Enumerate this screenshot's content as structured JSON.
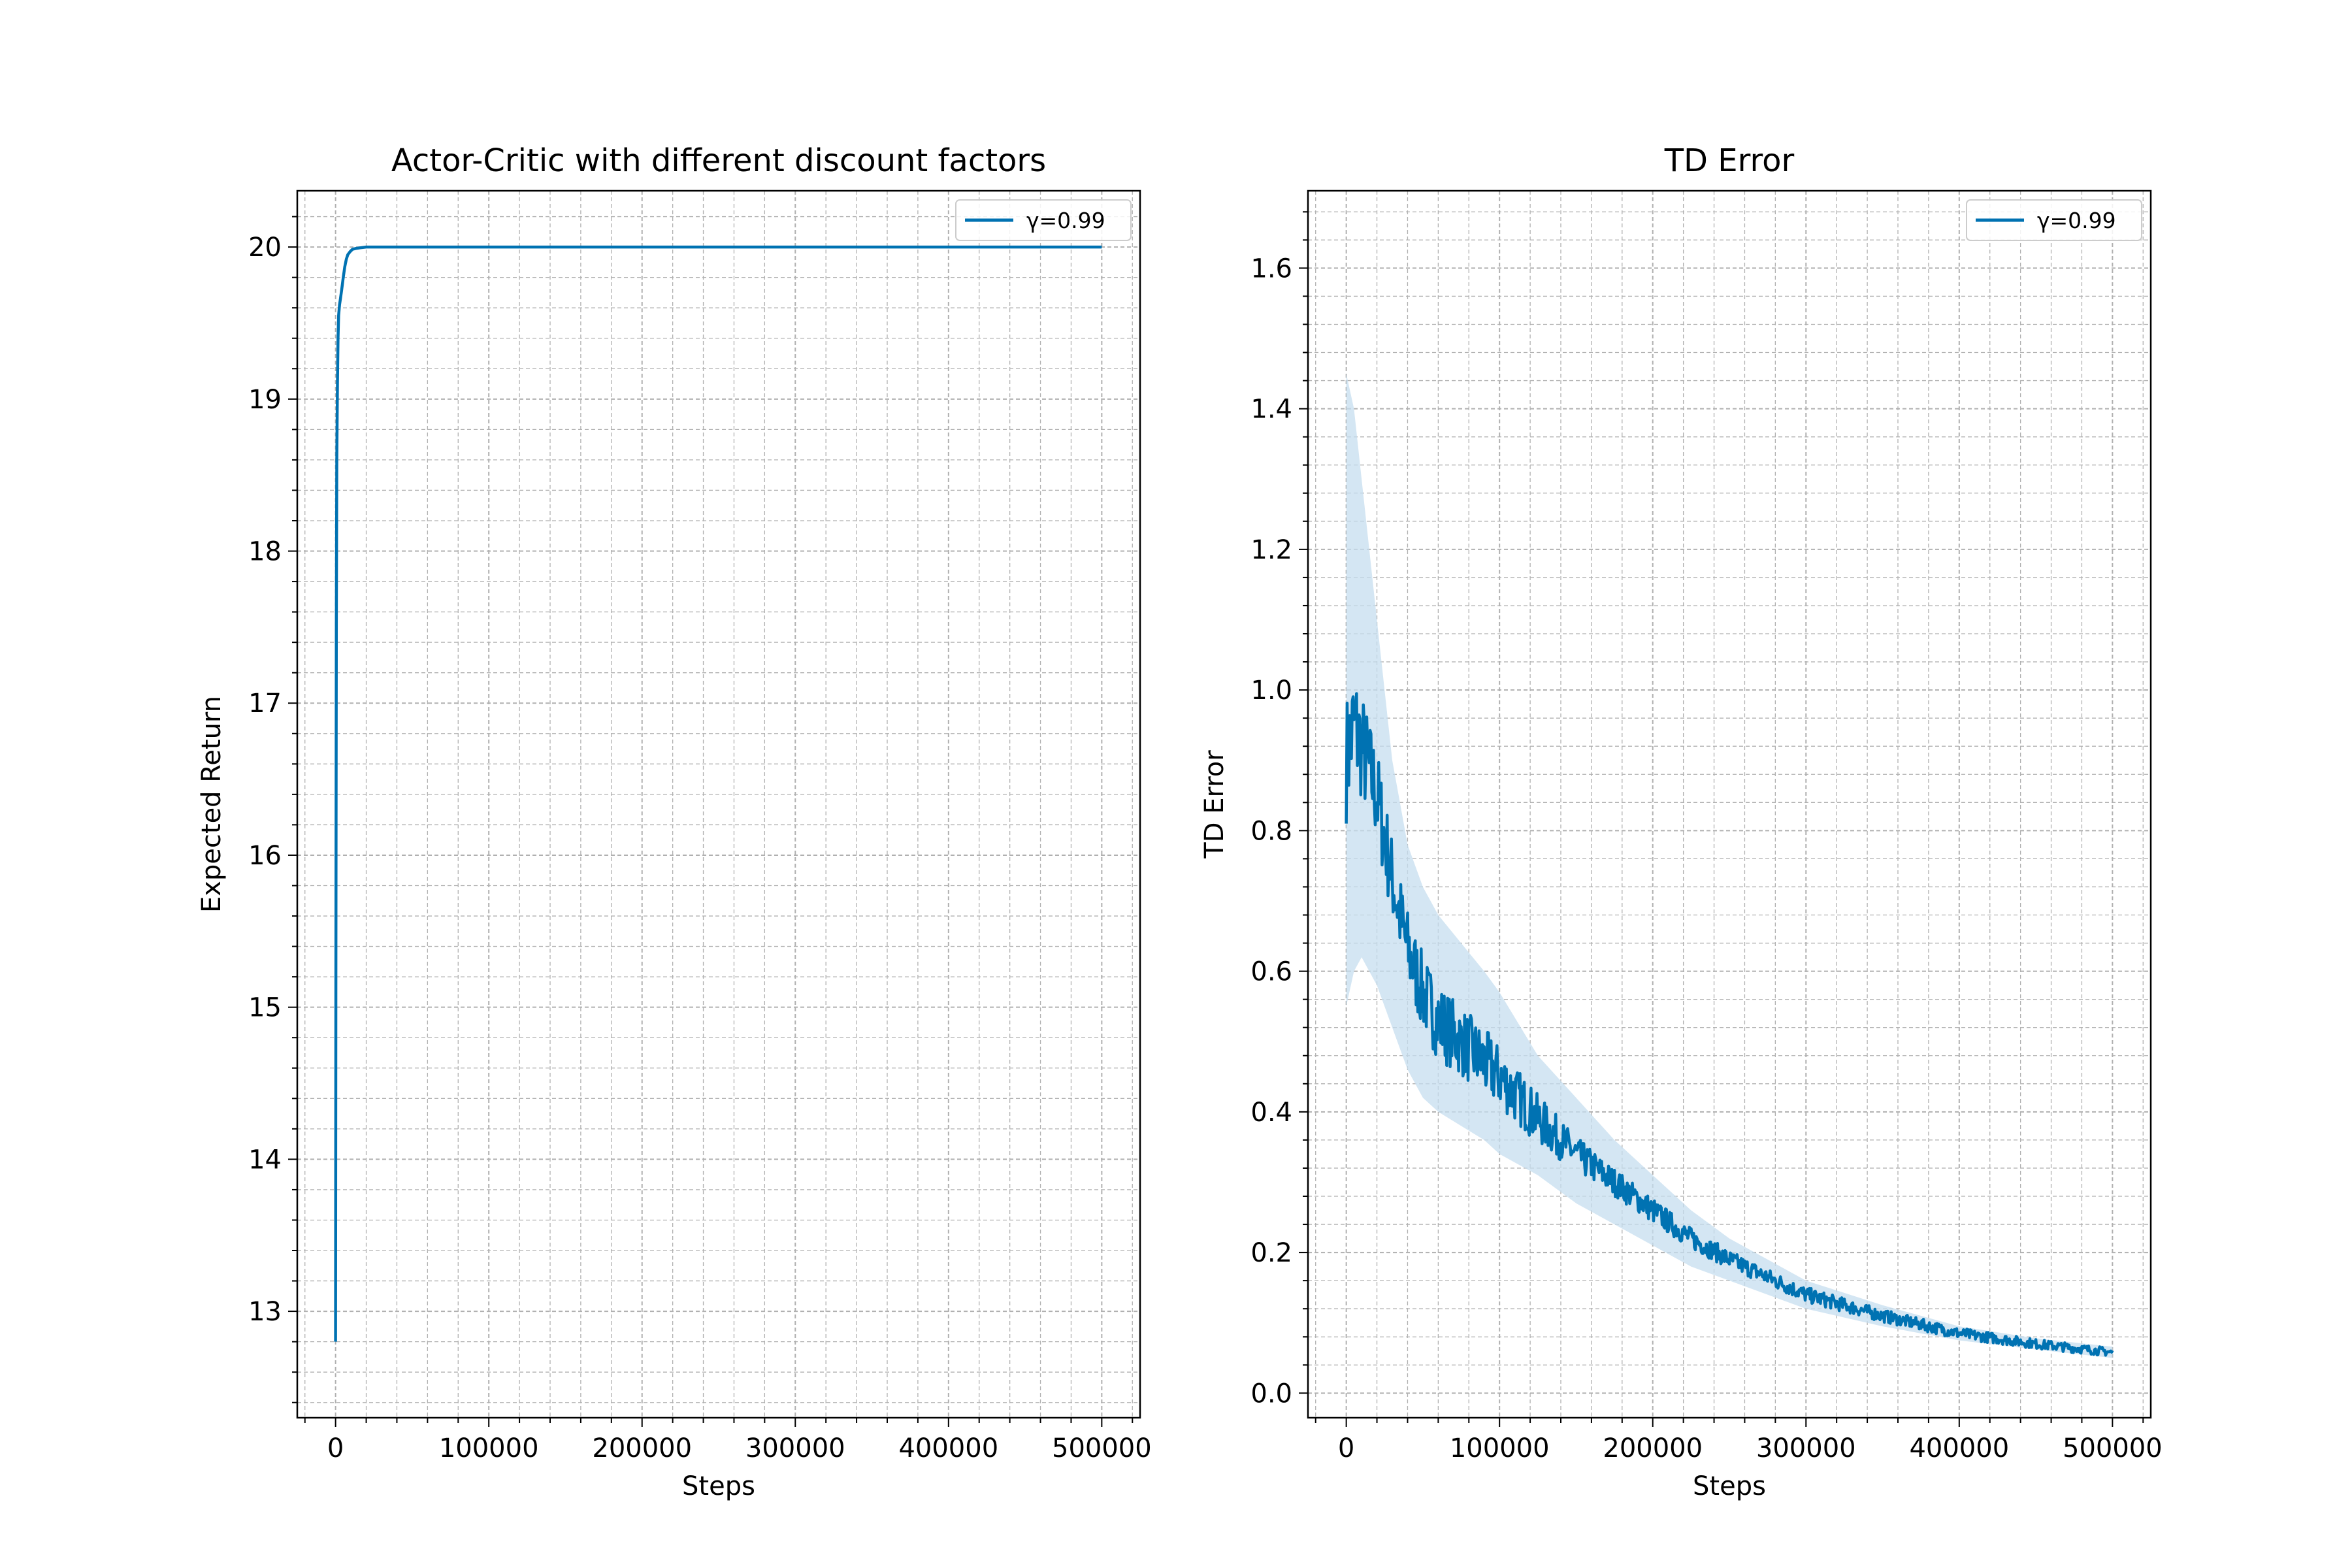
{
  "figure": {
    "background": "#ffffff"
  },
  "chart_data": [
    {
      "type": "line",
      "title": "Actor-Critic with different discount factors",
      "xlabel": "Steps",
      "ylabel": "Expected Return",
      "xlim": [
        -25000,
        525000
      ],
      "ylim": [
        12.3,
        20.37
      ],
      "xticks": [
        0,
        100000,
        200000,
        300000,
        400000,
        500000
      ],
      "xtick_labels": [
        "0",
        "100000",
        "200000",
        "300000",
        "400000",
        "500000"
      ],
      "yticks": [
        13,
        14,
        15,
        16,
        17,
        18,
        19,
        20
      ],
      "ytick_labels": [
        "13",
        "14",
        "15",
        "16",
        "17",
        "18",
        "19",
        "20"
      ],
      "grid": true,
      "minor_grid": true,
      "legend": {
        "position": "top-right",
        "entries": [
          "γ=0.99"
        ]
      },
      "series": [
        {
          "name": "γ=0.99",
          "color": "#0072b2",
          "x": [
            0,
            200,
            500,
            800,
            1200,
            1600,
            2000,
            2600,
            3200,
            4000,
            5000,
            6000,
            7000,
            8000,
            9500,
            11000,
            13000,
            16000,
            20000,
            30000,
            50000,
            100000,
            200000,
            300000,
            400000,
            500000
          ],
          "y": [
            12.8,
            15.2,
            17.5,
            18.6,
            19.1,
            19.4,
            19.55,
            19.62,
            19.66,
            19.72,
            19.8,
            19.87,
            19.92,
            19.95,
            19.97,
            19.985,
            19.99,
            19.995,
            20.0,
            20.0,
            20.0,
            20.0,
            20.0,
            20.0,
            20.0,
            20.0
          ]
        }
      ]
    },
    {
      "type": "line",
      "title": "TD Error",
      "xlabel": "Steps",
      "ylabel": "TD Error",
      "xlim": [
        -25000,
        525000
      ],
      "ylim": [
        -0.035,
        1.71
      ],
      "xticks": [
        0,
        100000,
        200000,
        300000,
        400000,
        500000
      ],
      "xtick_labels": [
        "0",
        "100000",
        "200000",
        "300000",
        "400000",
        "500000"
      ],
      "yticks": [
        0.0,
        0.2,
        0.4,
        0.6,
        0.8,
        1.0,
        1.2,
        1.4,
        1.6
      ],
      "ytick_labels": [
        "0.0",
        "0.2",
        "0.4",
        "0.6",
        "0.8",
        "1.0",
        "1.2",
        "1.4",
        "1.6"
      ],
      "grid": true,
      "minor_grid": true,
      "legend": {
        "position": "top-right",
        "entries": [
          "γ=0.99"
        ]
      },
      "series": [
        {
          "name": "γ=0.99",
          "color": "#0072b2",
          "band_color": "#c6ddef",
          "x": [
            0,
            5000,
            10000,
            20000,
            30000,
            40000,
            50000,
            60000,
            75000,
            90000,
            100000,
            125000,
            150000,
            175000,
            200000,
            225000,
            250000,
            300000,
            350000,
            400000,
            450000,
            500000
          ],
          "y": [
            0.9,
            0.95,
            0.92,
            0.85,
            0.73,
            0.63,
            0.57,
            0.53,
            0.5,
            0.47,
            0.45,
            0.39,
            0.34,
            0.3,
            0.26,
            0.22,
            0.19,
            0.14,
            0.11,
            0.085,
            0.07,
            0.058
          ],
          "noise": [
            0.09,
            0.09,
            0.08,
            0.07,
            0.06,
            0.06,
            0.055,
            0.055,
            0.05,
            0.05,
            0.045,
            0.035,
            0.025,
            0.02,
            0.018,
            0.015,
            0.013,
            0.011,
            0.009,
            0.008,
            0.007,
            0.006
          ],
          "band_upper": [
            1.45,
            1.4,
            1.3,
            1.1,
            0.9,
            0.78,
            0.72,
            0.68,
            0.64,
            0.6,
            0.57,
            0.48,
            0.42,
            0.36,
            0.31,
            0.26,
            0.22,
            0.16,
            0.125,
            0.095,
            0.078,
            0.066
          ],
          "band_lower": [
            0.55,
            0.6,
            0.62,
            0.58,
            0.52,
            0.46,
            0.42,
            0.4,
            0.38,
            0.36,
            0.34,
            0.31,
            0.27,
            0.24,
            0.21,
            0.18,
            0.16,
            0.12,
            0.095,
            0.075,
            0.062,
            0.05
          ]
        }
      ]
    }
  ]
}
